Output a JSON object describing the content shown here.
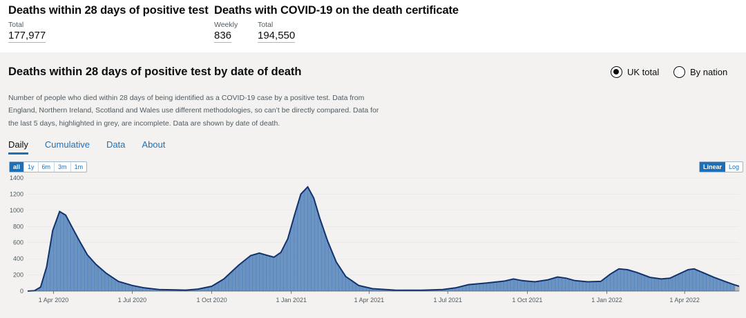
{
  "header": {
    "group1": {
      "title": "Deaths within 28 days of positive test",
      "metrics": [
        {
          "label": "Total",
          "value": "177,977"
        }
      ]
    },
    "group2": {
      "title": "Deaths with COVID-19 on the death certificate",
      "metrics": [
        {
          "label": "Weekly",
          "value": "836"
        },
        {
          "label": "Total",
          "value": "194,550"
        }
      ]
    }
  },
  "card": {
    "title": "Deaths within 28 days of positive test by date of death",
    "radios": [
      {
        "label": "UK total",
        "selected": true
      },
      {
        "label": "By nation",
        "selected": false
      }
    ],
    "description": "Number of people who died within 28 days of being identified as a COVID-19 case by a positive test. Data from England, Northern Ireland, Scotland and Wales use different methodologies, so can’t be directly compared. Data for the last 5 days, highlighted in grey, are incomplete. Data are shown by date of death.",
    "tabs": [
      {
        "label": "Daily",
        "active": true
      },
      {
        "label": "Cumulative"
      },
      {
        "label": "Data"
      },
      {
        "label": "About"
      }
    ],
    "range_buttons": [
      {
        "label": "all",
        "active": true
      },
      {
        "label": "1y"
      },
      {
        "label": "6m"
      },
      {
        "label": "3m"
      },
      {
        "label": "1m"
      }
    ],
    "scale_buttons": [
      {
        "label": "Linear",
        "active": true
      },
      {
        "label": "Log"
      }
    ]
  },
  "colors": {
    "bar": "#5b88bd",
    "line": "#12326e",
    "incomplete": "#b1b4b6",
    "accent": "#1d70b8"
  },
  "chart_data": {
    "type": "bar",
    "x_start": "2020-03-02",
    "x_end": "2022-06-03",
    "ylim": [
      0,
      1400
    ],
    "y_ticks": [
      0,
      200,
      400,
      600,
      800,
      1000,
      1200,
      1400
    ],
    "x_ticks": [
      "1 Apr 2020",
      "1 Jul 2020",
      "1 Oct 2020",
      "1 Jan 2021",
      "1 Apr 2021",
      "1 Jul 2021",
      "1 Oct 2021",
      "1 Jan 2022",
      "1 Apr 2022"
    ],
    "series": [
      {
        "values": [
          {
            "date": "2020-03-02",
            "value": 0
          },
          {
            "date": "2020-03-10",
            "value": 5
          },
          {
            "date": "2020-03-17",
            "value": 50
          },
          {
            "date": "2020-03-24",
            "value": 300
          },
          {
            "date": "2020-03-31",
            "value": 750
          },
          {
            "date": "2020-04-08",
            "value": 985
          },
          {
            "date": "2020-04-15",
            "value": 940
          },
          {
            "date": "2020-04-22",
            "value": 800
          },
          {
            "date": "2020-05-01",
            "value": 620
          },
          {
            "date": "2020-05-10",
            "value": 450
          },
          {
            "date": "2020-05-20",
            "value": 330
          },
          {
            "date": "2020-06-01",
            "value": 220
          },
          {
            "date": "2020-06-15",
            "value": 120
          },
          {
            "date": "2020-07-01",
            "value": 70
          },
          {
            "date": "2020-07-15",
            "value": 40
          },
          {
            "date": "2020-08-01",
            "value": 20
          },
          {
            "date": "2020-09-01",
            "value": 12
          },
          {
            "date": "2020-09-15",
            "value": 25
          },
          {
            "date": "2020-10-01",
            "value": 60
          },
          {
            "date": "2020-10-15",
            "value": 150
          },
          {
            "date": "2020-11-01",
            "value": 320
          },
          {
            "date": "2020-11-15",
            "value": 440
          },
          {
            "date": "2020-11-25",
            "value": 470
          },
          {
            "date": "2020-12-05",
            "value": 440
          },
          {
            "date": "2020-12-12",
            "value": 420
          },
          {
            "date": "2020-12-20",
            "value": 480
          },
          {
            "date": "2020-12-28",
            "value": 650
          },
          {
            "date": "2021-01-05",
            "value": 950
          },
          {
            "date": "2021-01-12",
            "value": 1200
          },
          {
            "date": "2021-01-20",
            "value": 1290
          },
          {
            "date": "2021-01-27",
            "value": 1150
          },
          {
            "date": "2021-02-03",
            "value": 900
          },
          {
            "date": "2021-02-12",
            "value": 620
          },
          {
            "date": "2021-02-22",
            "value": 360
          },
          {
            "date": "2021-03-05",
            "value": 180
          },
          {
            "date": "2021-03-20",
            "value": 70
          },
          {
            "date": "2021-04-05",
            "value": 30
          },
          {
            "date": "2021-05-01",
            "value": 12
          },
          {
            "date": "2021-06-01",
            "value": 10
          },
          {
            "date": "2021-06-25",
            "value": 20
          },
          {
            "date": "2021-07-10",
            "value": 40
          },
          {
            "date": "2021-07-25",
            "value": 80
          },
          {
            "date": "2021-08-15",
            "value": 100
          },
          {
            "date": "2021-09-05",
            "value": 125
          },
          {
            "date": "2021-09-15",
            "value": 150
          },
          {
            "date": "2021-09-25",
            "value": 130
          },
          {
            "date": "2021-10-10",
            "value": 115
          },
          {
            "date": "2021-10-25",
            "value": 140
          },
          {
            "date": "2021-11-05",
            "value": 175
          },
          {
            "date": "2021-11-15",
            "value": 160
          },
          {
            "date": "2021-11-25",
            "value": 130
          },
          {
            "date": "2021-12-10",
            "value": 115
          },
          {
            "date": "2021-12-25",
            "value": 120
          },
          {
            "date": "2022-01-05",
            "value": 210
          },
          {
            "date": "2022-01-15",
            "value": 275
          },
          {
            "date": "2022-01-25",
            "value": 265
          },
          {
            "date": "2022-02-05",
            "value": 230
          },
          {
            "date": "2022-02-20",
            "value": 170
          },
          {
            "date": "2022-03-05",
            "value": 150
          },
          {
            "date": "2022-03-15",
            "value": 160
          },
          {
            "date": "2022-03-25",
            "value": 210
          },
          {
            "date": "2022-04-05",
            "value": 265
          },
          {
            "date": "2022-04-12",
            "value": 275
          },
          {
            "date": "2022-04-22",
            "value": 230
          },
          {
            "date": "2022-05-05",
            "value": 170
          },
          {
            "date": "2022-05-20",
            "value": 110
          },
          {
            "date": "2022-05-28",
            "value": 80
          },
          {
            "date": "2022-06-03",
            "value": 60
          }
        ]
      }
    ]
  }
}
